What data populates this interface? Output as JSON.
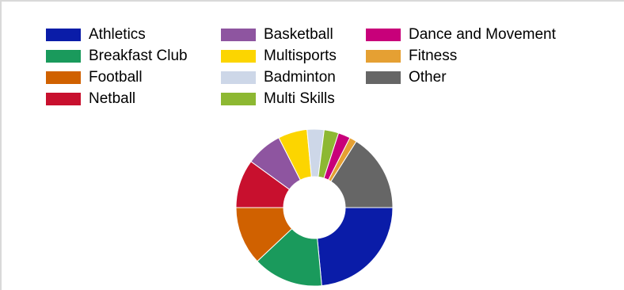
{
  "chart_data": {
    "type": "pie",
    "variant": "donut",
    "title": "",
    "legend_position": "top",
    "slices": [
      {
        "label": "Athletics",
        "value": 23.5,
        "color": "#0a1ca8"
      },
      {
        "label": "Breakfast Club",
        "value": 14.5,
        "color": "#1a9a5c"
      },
      {
        "label": "Football",
        "value": 12.0,
        "color": "#d06100"
      },
      {
        "label": "Netball",
        "value": 10.0,
        "color": "#c8102e"
      },
      {
        "label": "Basketball",
        "value": 7.5,
        "color": "#8e55a0"
      },
      {
        "label": "Multisports",
        "value": 6.0,
        "color": "#fcd500"
      },
      {
        "label": "Badminton",
        "value": 3.5,
        "color": "#cdd7e8"
      },
      {
        "label": "Multi Skills",
        "value": 3.0,
        "color": "#8db832"
      },
      {
        "label": "Dance and Movement",
        "value": 2.5,
        "color": "#c8007a"
      },
      {
        "label": "Fitness",
        "value": 1.5,
        "color": "#e5a033"
      },
      {
        "label": "Other",
        "value": 16.0,
        "color": "#666666"
      }
    ],
    "legend_columns": [
      [
        "Athletics",
        "Breakfast Club",
        "Football",
        "Netball"
      ],
      [
        "Basketball",
        "Multisports",
        "Badminton",
        "Multi Skills"
      ],
      [
        "Dance and Movement",
        "Fitness",
        "Other"
      ]
    ]
  }
}
